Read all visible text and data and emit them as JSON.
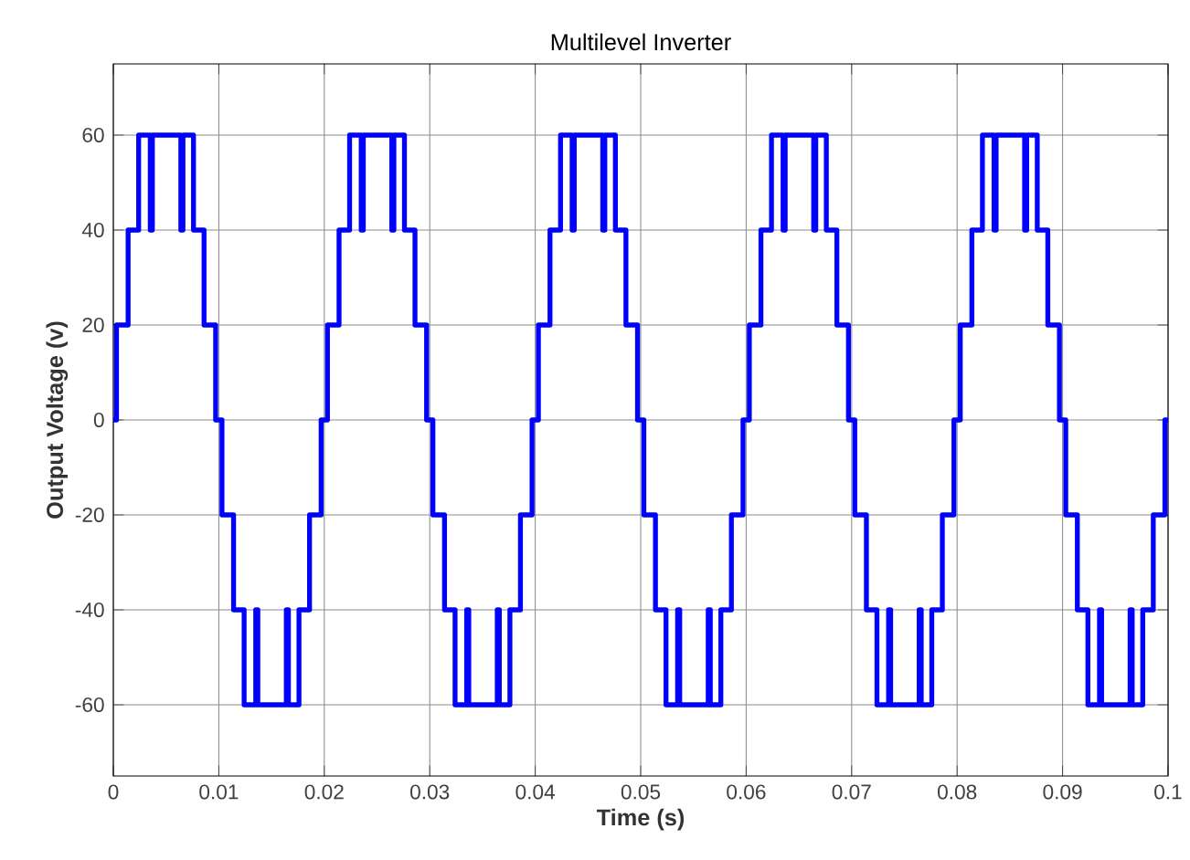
{
  "chart_data": {
    "type": "step",
    "title": "Multilevel Inverter",
    "xlabel": "Time (s)",
    "ylabel": "Output Voltage  (v)",
    "x": [
      0,
      0.0003,
      0.0014,
      0.0024,
      0.0035,
      0.0037,
      0.0064,
      0.0066,
      0.0076,
      0.0086,
      0.0097,
      0.0103,
      0.0114,
      0.0124,
      0.0135,
      0.0137,
      0.0164,
      0.0166,
      0.0176,
      0.0186,
      0.0197,
      0.0203,
      0.0214,
      0.0224,
      0.0235,
      0.0237,
      0.0264,
      0.0266,
      0.0276,
      0.0286,
      0.0297,
      0.0303,
      0.0314,
      0.0324,
      0.0335,
      0.0337,
      0.0364,
      0.0366,
      0.0376,
      0.0386,
      0.0397,
      0.0403,
      0.0414,
      0.0424,
      0.0435,
      0.0437,
      0.0464,
      0.0466,
      0.0476,
      0.0486,
      0.0497,
      0.0503,
      0.0514,
      0.0524,
      0.0535,
      0.0537,
      0.0564,
      0.0566,
      0.0576,
      0.0586,
      0.0597,
      0.0603,
      0.0614,
      0.0624,
      0.0635,
      0.0637,
      0.0664,
      0.0666,
      0.0676,
      0.0686,
      0.0697,
      0.0703,
      0.0714,
      0.0724,
      0.0735,
      0.0737,
      0.0764,
      0.0766,
      0.0776,
      0.0786,
      0.0797,
      0.0803,
      0.0814,
      0.0824,
      0.0835,
      0.0837,
      0.0864,
      0.0866,
      0.0876,
      0.0886,
      0.0897,
      0.0903,
      0.0914,
      0.0924,
      0.0935,
      0.0937,
      0.0964,
      0.0966,
      0.0976,
      0.0986,
      0.0997,
      0.1
    ],
    "values": [
      0,
      20,
      40,
      60,
      40,
      60,
      40,
      60,
      40,
      20,
      0,
      -20,
      -40,
      -60,
      -40,
      -60,
      -40,
      -60,
      -40,
      -20,
      0,
      20,
      40,
      60,
      40,
      60,
      40,
      60,
      40,
      20,
      0,
      -20,
      -40,
      -60,
      -40,
      -60,
      -40,
      -60,
      -40,
      -20,
      0,
      20,
      40,
      60,
      40,
      60,
      40,
      60,
      40,
      20,
      0,
      -20,
      -40,
      -60,
      -40,
      -60,
      -40,
      -60,
      -40,
      -20,
      0,
      20,
      40,
      60,
      40,
      60,
      40,
      60,
      40,
      20,
      0,
      -20,
      -40,
      -60,
      -40,
      -60,
      -40,
      -60,
      -40,
      -20,
      0,
      20,
      40,
      60,
      40,
      60,
      40,
      60,
      40,
      20,
      0,
      -20,
      -40,
      -60,
      -40,
      -60,
      -40,
      -60,
      -40,
      -20,
      0,
      0
    ],
    "color": "#0000ff",
    "xlim": [
      0,
      0.1
    ],
    "ylim": [
      -75,
      75
    ],
    "xticks": [
      0,
      0.01,
      0.02,
      0.03,
      0.04,
      0.05,
      0.06,
      0.07,
      0.08,
      0.09,
      0.1
    ],
    "yticks": [
      -60,
      -40,
      -20,
      0,
      20,
      40,
      60
    ],
    "grid": true
  }
}
